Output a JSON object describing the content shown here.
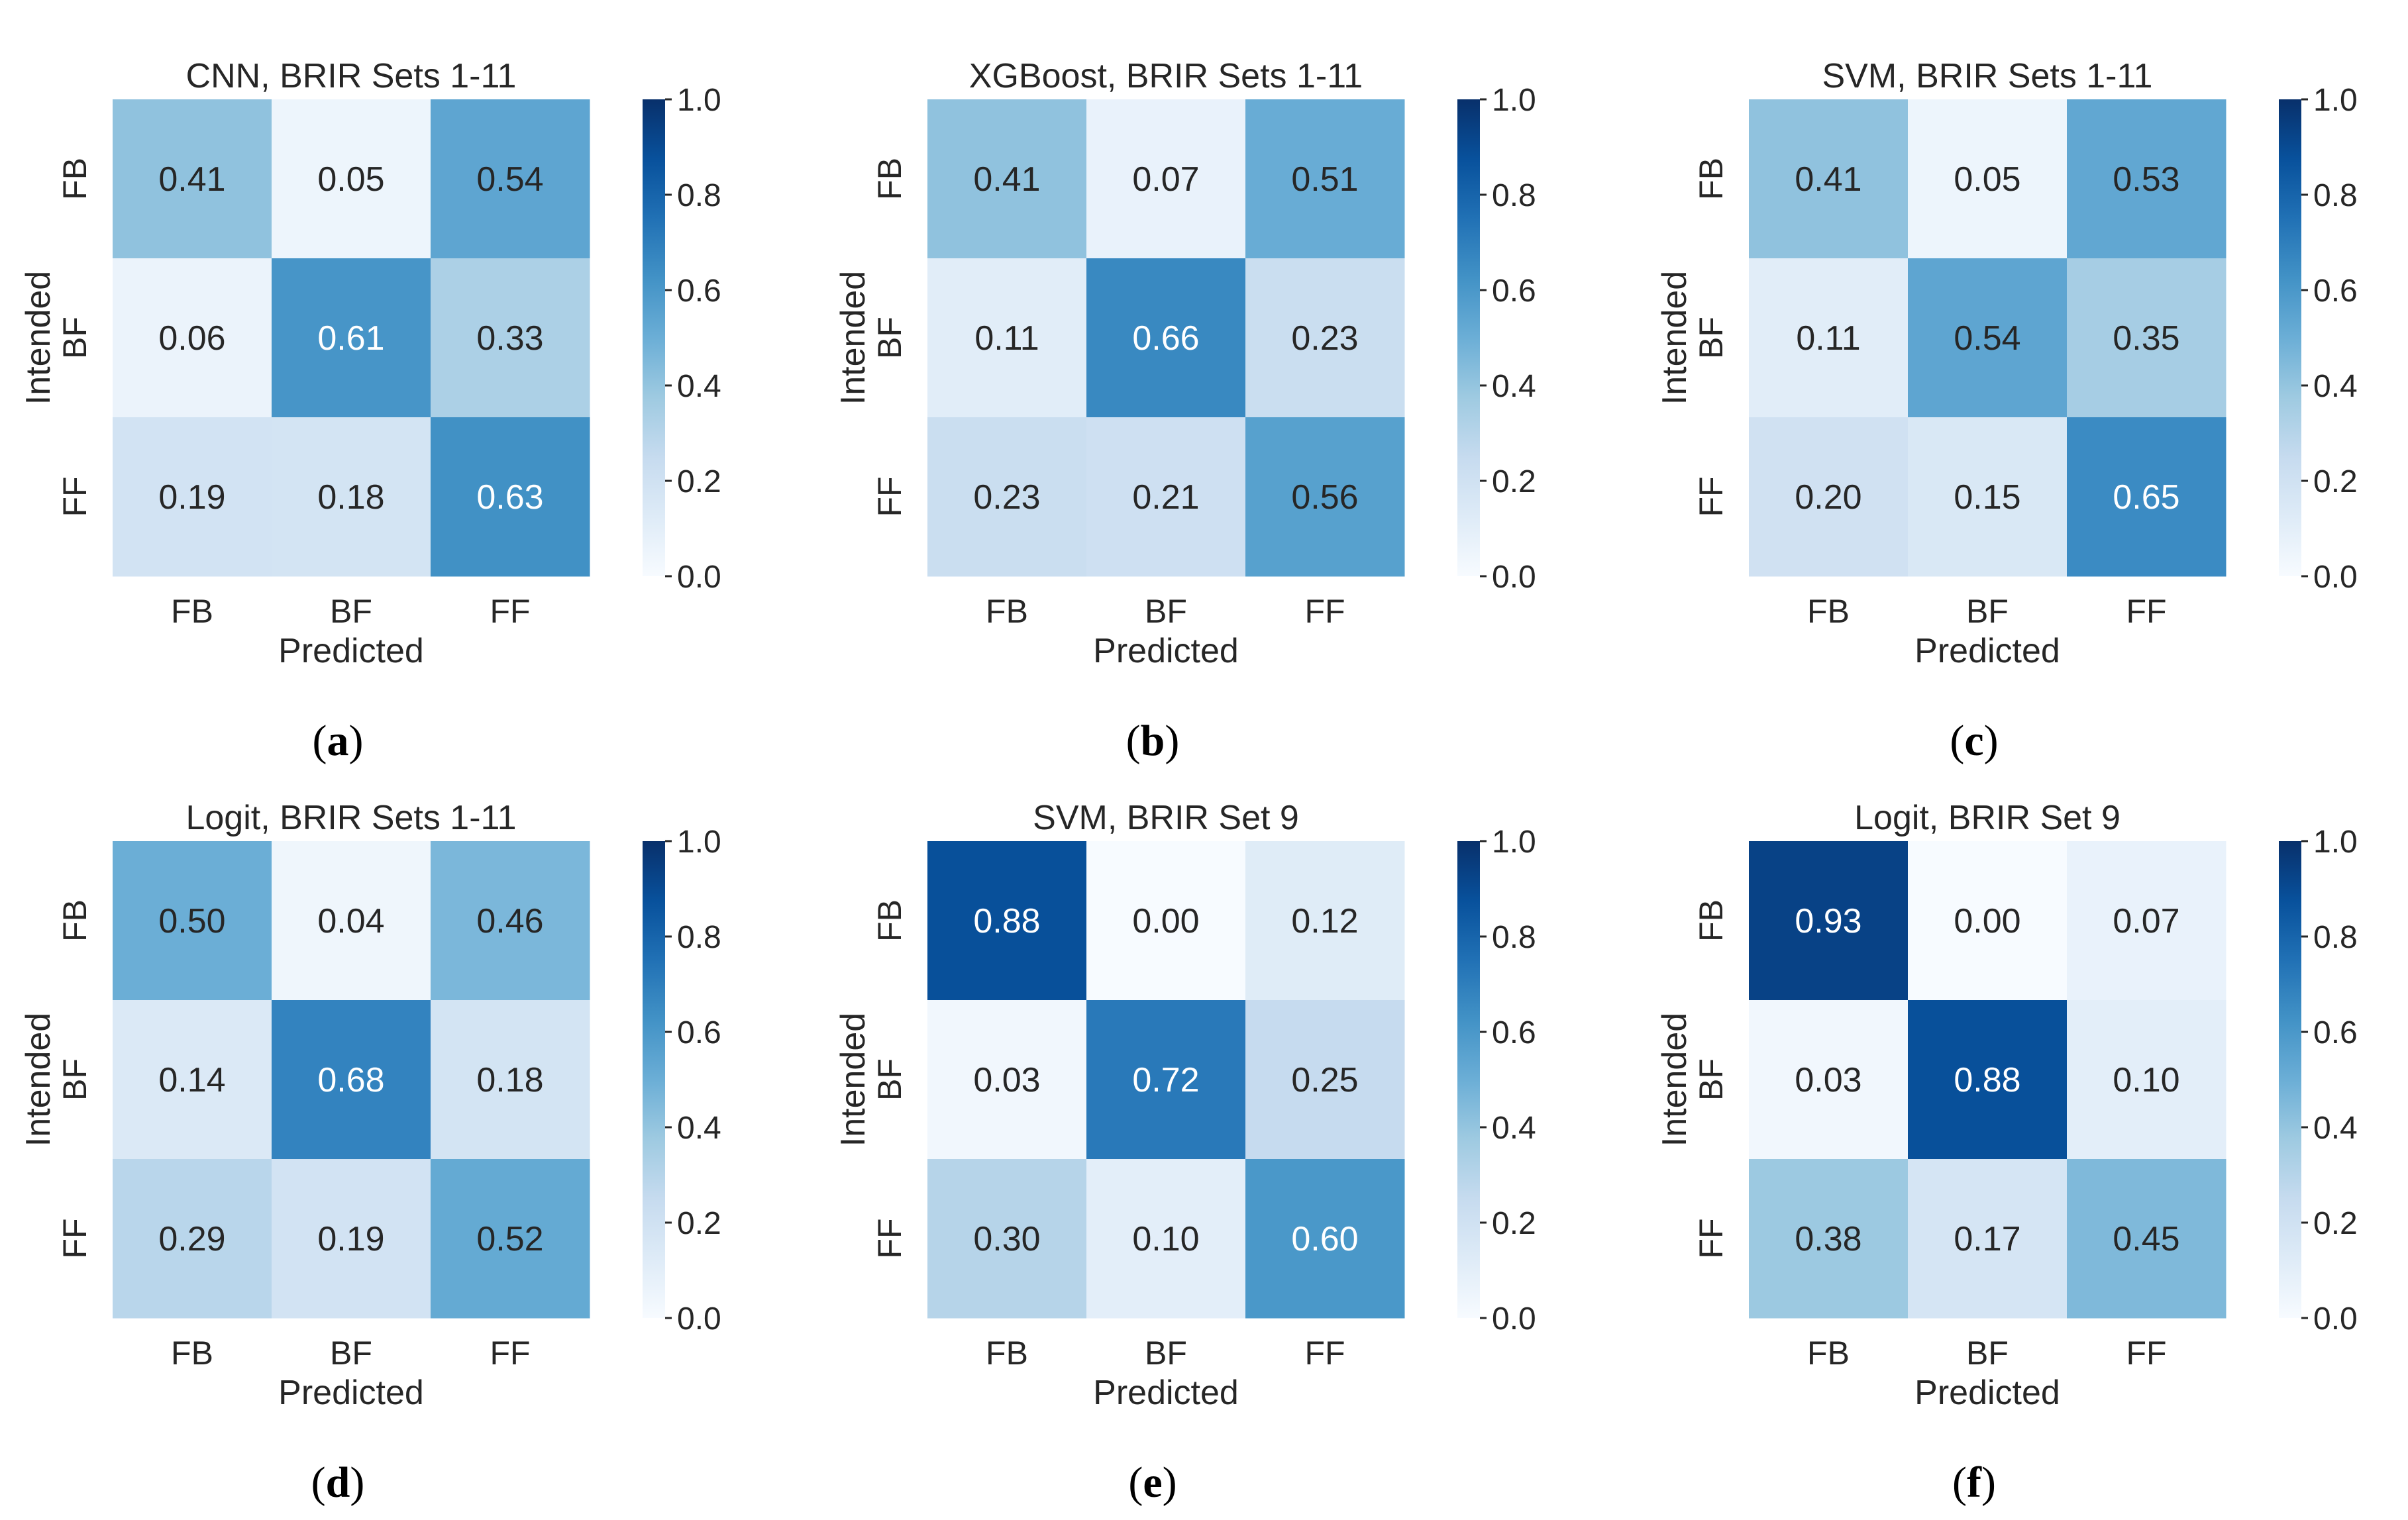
{
  "figure": {
    "colormap": "Blues",
    "colors": {
      "blues_low": "#f7fbff",
      "blues_high": "#08306b",
      "text_dark": "#262626",
      "text_light": "#ffffff"
    }
  },
  "chart_data": [
    {
      "type": "heatmap",
      "title": "CNN, BRIR Sets 1-11",
      "xlabel": "Predicted",
      "ylabel": "Intended",
      "x_categories": [
        "FB",
        "BF",
        "FF"
      ],
      "y_categories": [
        "FB",
        "BF",
        "FF"
      ],
      "values": [
        [
          0.41,
          0.05,
          0.54
        ],
        [
          0.06,
          0.61,
          0.33
        ],
        [
          0.19,
          0.18,
          0.63
        ]
      ],
      "cell_labels": [
        [
          "0.41",
          "0.05",
          "0.54"
        ],
        [
          "0.06",
          "0.61",
          "0.33"
        ],
        [
          "0.19",
          "0.18",
          "0.63"
        ]
      ],
      "vmin": 0.0,
      "vmax": 1.0,
      "colorbar_ticks": [
        "0.0",
        "0.2",
        "0.4",
        "0.6",
        "0.8",
        "1.0"
      ],
      "caption_letter": "a"
    },
    {
      "type": "heatmap",
      "title": "XGBoost, BRIR Sets 1-11",
      "xlabel": "Predicted",
      "ylabel": "Intended",
      "x_categories": [
        "FB",
        "BF",
        "FF"
      ],
      "y_categories": [
        "FB",
        "BF",
        "FF"
      ],
      "values": [
        [
          0.41,
          0.07,
          0.51
        ],
        [
          0.11,
          0.66,
          0.23
        ],
        [
          0.23,
          0.21,
          0.56
        ]
      ],
      "cell_labels": [
        [
          "0.41",
          "0.07",
          "0.51"
        ],
        [
          "0.11",
          "0.66",
          "0.23"
        ],
        [
          "0.23",
          "0.21",
          "0.56"
        ]
      ],
      "vmin": 0.0,
      "vmax": 1.0,
      "colorbar_ticks": [
        "0.0",
        "0.2",
        "0.4",
        "0.6",
        "0.8",
        "1.0"
      ],
      "caption_letter": "b"
    },
    {
      "type": "heatmap",
      "title": "SVM, BRIR Sets 1-11",
      "xlabel": "Predicted",
      "ylabel": "Intended",
      "x_categories": [
        "FB",
        "BF",
        "FF"
      ],
      "y_categories": [
        "FB",
        "BF",
        "FF"
      ],
      "values": [
        [
          0.41,
          0.05,
          0.53
        ],
        [
          0.11,
          0.54,
          0.35
        ],
        [
          0.2,
          0.15,
          0.65
        ]
      ],
      "cell_labels": [
        [
          "0.41",
          "0.05",
          "0.53"
        ],
        [
          "0.11",
          "0.54",
          "0.35"
        ],
        [
          "0.20",
          "0.15",
          "0.65"
        ]
      ],
      "vmin": 0.0,
      "vmax": 1.0,
      "colorbar_ticks": [
        "0.0",
        "0.2",
        "0.4",
        "0.6",
        "0.8",
        "1.0"
      ],
      "caption_letter": "c"
    },
    {
      "type": "heatmap",
      "title": "Logit, BRIR Sets 1-11",
      "xlabel": "Predicted",
      "ylabel": "Intended",
      "x_categories": [
        "FB",
        "BF",
        "FF"
      ],
      "y_categories": [
        "FB",
        "BF",
        "FF"
      ],
      "values": [
        [
          0.5,
          0.04,
          0.46
        ],
        [
          0.14,
          0.68,
          0.18
        ],
        [
          0.29,
          0.19,
          0.52
        ]
      ],
      "cell_labels": [
        [
          "0.50",
          "0.04",
          "0.46"
        ],
        [
          "0.14",
          "0.68",
          "0.18"
        ],
        [
          "0.29",
          "0.19",
          "0.52"
        ]
      ],
      "vmin": 0.0,
      "vmax": 1.0,
      "colorbar_ticks": [
        "0.0",
        "0.2",
        "0.4",
        "0.6",
        "0.8",
        "1.0"
      ],
      "caption_letter": "d"
    },
    {
      "type": "heatmap",
      "title": "SVM, BRIR Set 9",
      "xlabel": "Predicted",
      "ylabel": "Intended",
      "x_categories": [
        "FB",
        "BF",
        "FF"
      ],
      "y_categories": [
        "FB",
        "BF",
        "FF"
      ],
      "values": [
        [
          0.88,
          0.0,
          0.12
        ],
        [
          0.03,
          0.72,
          0.25
        ],
        [
          0.3,
          0.1,
          0.6
        ]
      ],
      "cell_labels": [
        [
          "0.88",
          "0.00",
          "0.12"
        ],
        [
          "0.03",
          "0.72",
          "0.25"
        ],
        [
          "0.30",
          "0.10",
          "0.60"
        ]
      ],
      "vmin": 0.0,
      "vmax": 1.0,
      "colorbar_ticks": [
        "0.0",
        "0.2",
        "0.4",
        "0.6",
        "0.8",
        "1.0"
      ],
      "caption_letter": "e"
    },
    {
      "type": "heatmap",
      "title": "Logit, BRIR Set 9",
      "xlabel": "Predicted",
      "ylabel": "Intended",
      "x_categories": [
        "FB",
        "BF",
        "FF"
      ],
      "y_categories": [
        "FB",
        "BF",
        "FF"
      ],
      "values": [
        [
          0.93,
          0.0,
          0.07
        ],
        [
          0.03,
          0.88,
          0.1
        ],
        [
          0.38,
          0.17,
          0.45
        ]
      ],
      "cell_labels": [
        [
          "0.93",
          "0.00",
          "0.07"
        ],
        [
          "0.03",
          "0.88",
          "0.10"
        ],
        [
          "0.38",
          "0.17",
          "0.45"
        ]
      ],
      "vmin": 0.0,
      "vmax": 1.0,
      "colorbar_ticks": [
        "0.0",
        "0.2",
        "0.4",
        "0.6",
        "0.8",
        "1.0"
      ],
      "caption_letter": "f"
    }
  ]
}
